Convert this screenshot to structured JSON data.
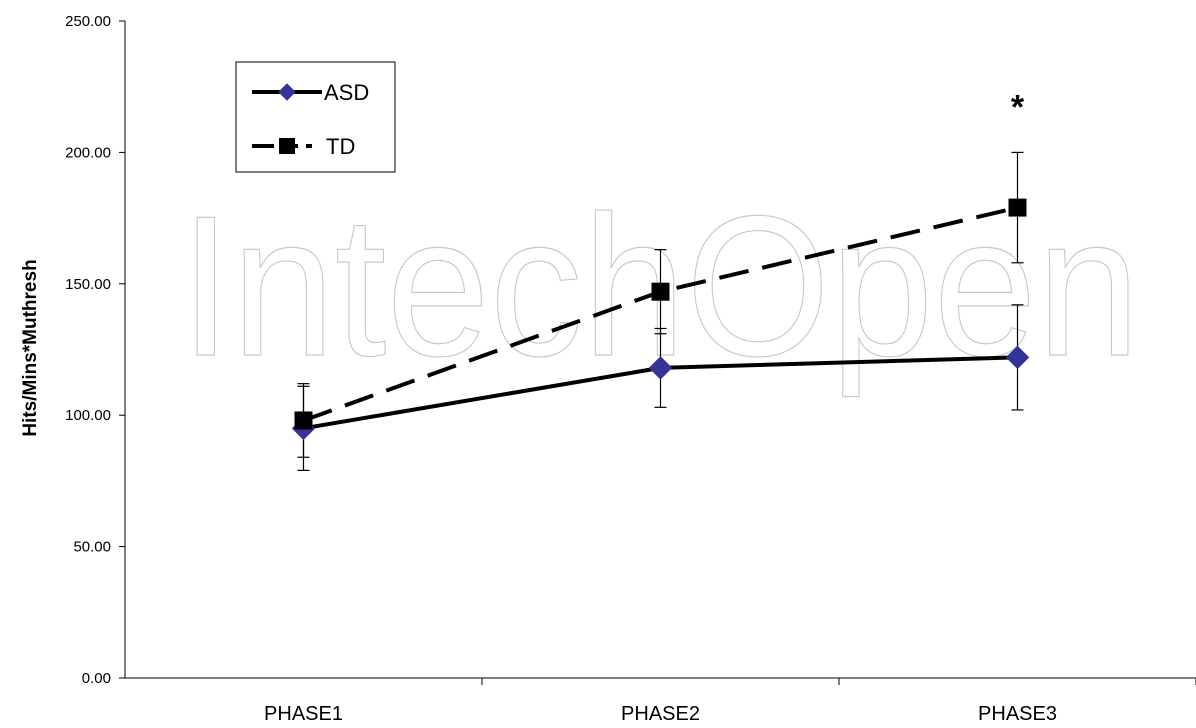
{
  "chart_data": {
    "type": "line",
    "title": "",
    "xlabel": "",
    "ylabel": "Hits/Mins*Muthresh",
    "ylim": [
      0,
      250
    ],
    "yticks": [
      "0.00",
      "50.00",
      "100.00",
      "150.00",
      "200.00",
      "250.00"
    ],
    "categories": [
      "PHASE1",
      "PHASE2",
      "PHASE3"
    ],
    "grid": false,
    "legend_position": "top-left",
    "series": [
      {
        "name": "ASD",
        "values": [
          95,
          118,
          122
        ],
        "error": [
          16,
          15,
          20
        ],
        "color": "#333399",
        "marker": "diamond",
        "line_style": "solid"
      },
      {
        "name": "TD",
        "values": [
          98,
          147,
          179
        ],
        "error": [
          14,
          16,
          21
        ],
        "color": "#000000",
        "marker": "square",
        "line_style": "dashed"
      }
    ],
    "annotations": [
      {
        "text": "*",
        "category": "PHASE3"
      }
    ]
  },
  "watermark": {
    "text": "IntechOpen"
  }
}
